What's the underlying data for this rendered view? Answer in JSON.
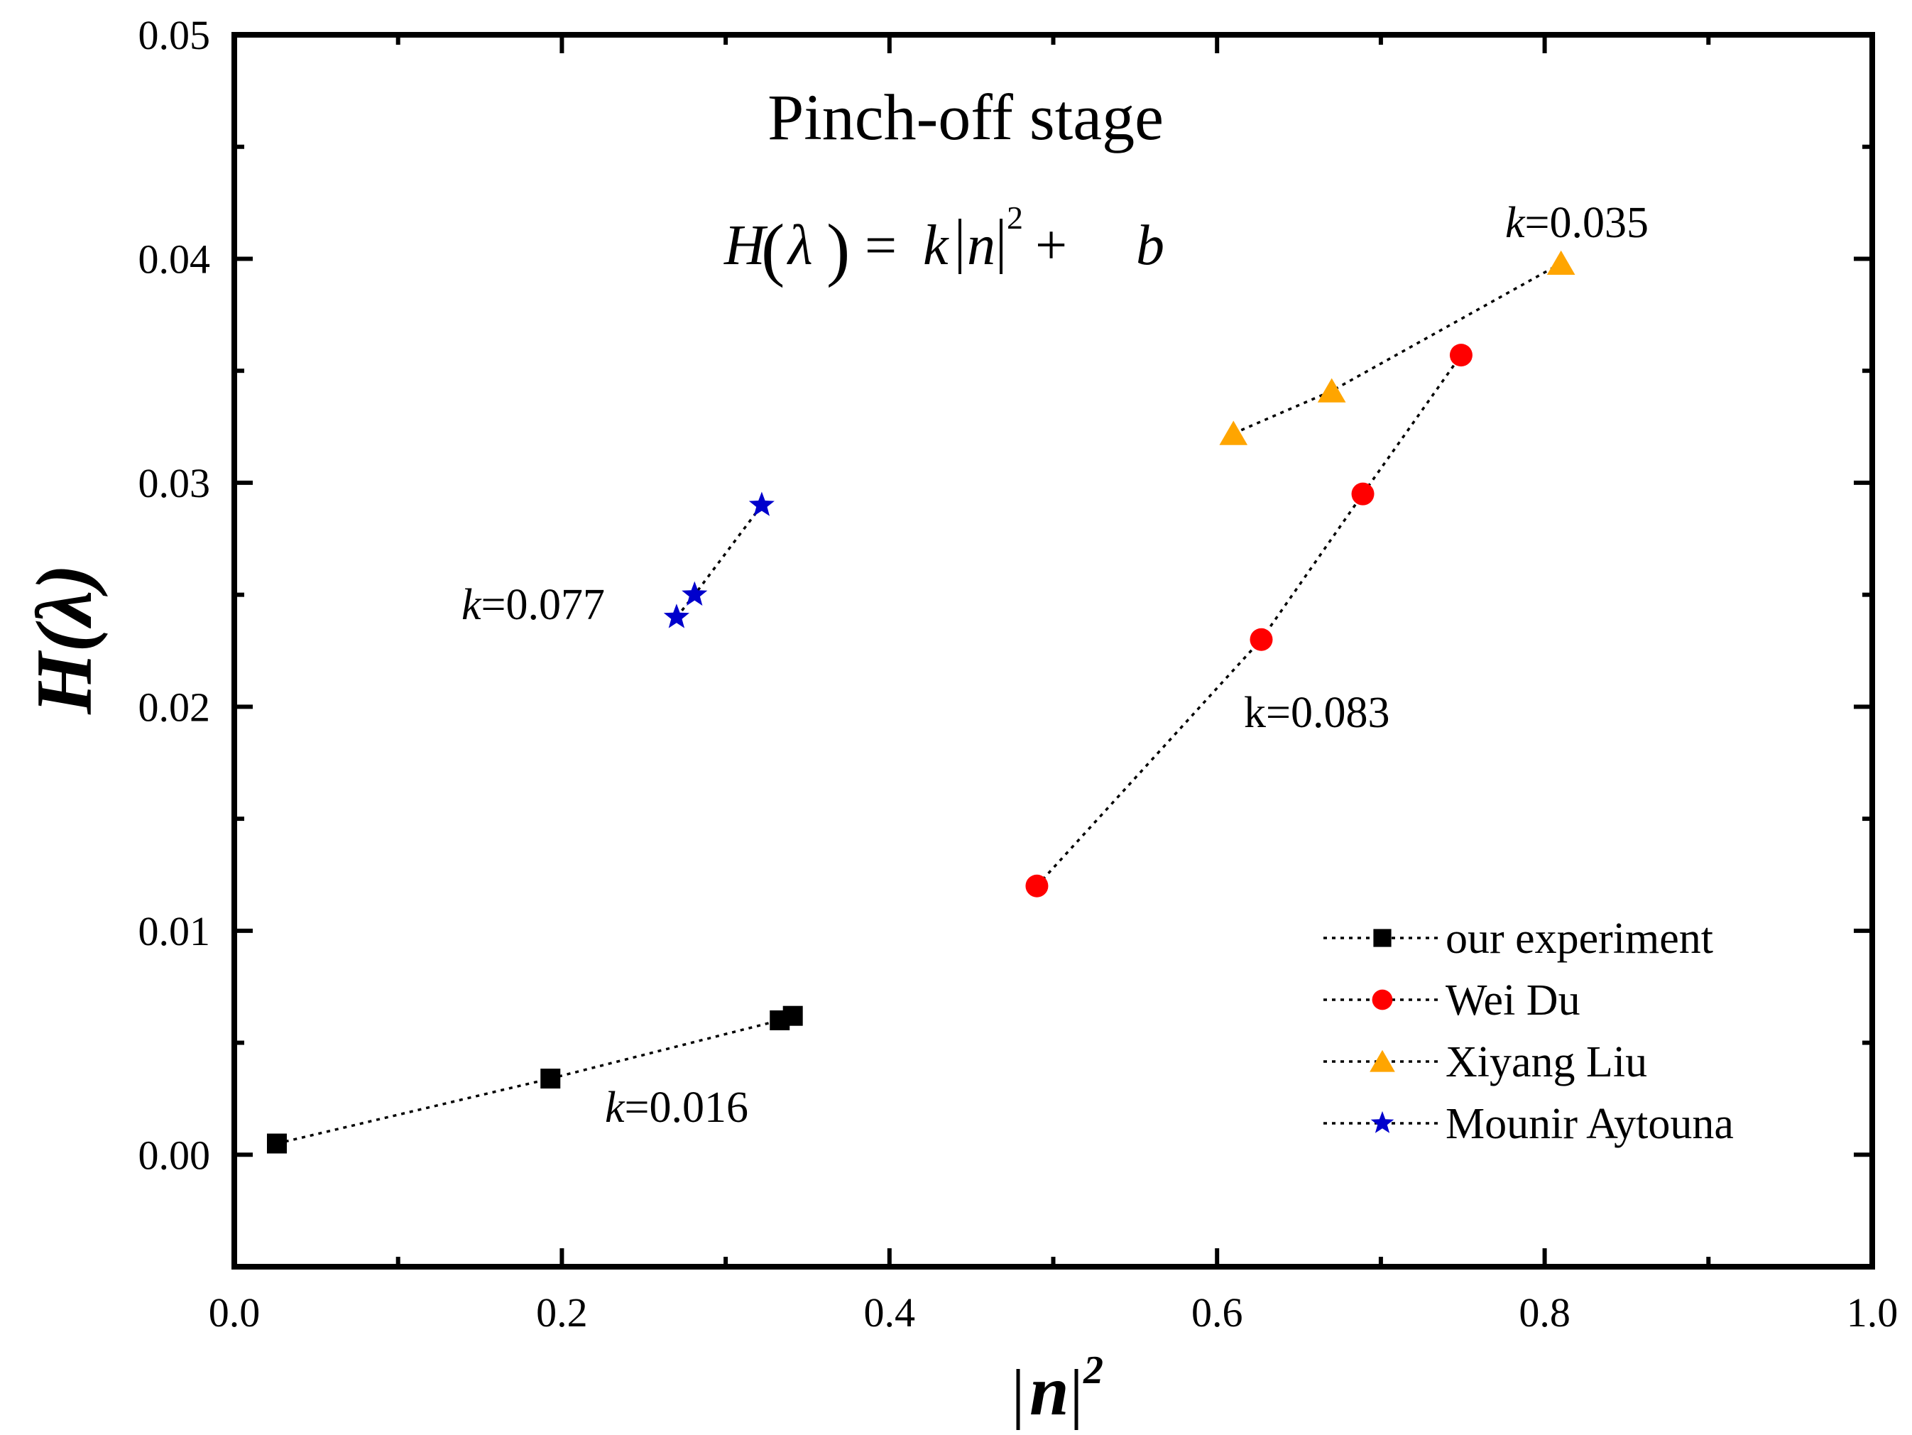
{
  "chart_data": {
    "type": "scatter",
    "title": "Pinch-off  stage",
    "formula": {
      "lhs": "H",
      "lambda": "λ",
      "eq": "=",
      "k": "k",
      "n": "n",
      "exp": "2",
      "plus": "+",
      "b": "b"
    },
    "xlabel": {
      "n": "n",
      "exp": "2"
    },
    "ylabel": {
      "h": "H",
      "lambda": "λ"
    },
    "xlim": [
      0.0,
      1.0
    ],
    "ylim": [
      -0.005,
      0.05
    ],
    "xticks": [
      "0.0",
      "0.2",
      "0.4",
      "0.6",
      "0.8",
      "1.0"
    ],
    "xtick_values": [
      0.0,
      0.2,
      0.4,
      0.6,
      0.8,
      1.0
    ],
    "yticks": [
      "0.00",
      "0.01",
      "0.02",
      "0.03",
      "0.04",
      "0.05"
    ],
    "ytick_values": [
      0.0,
      0.01,
      0.02,
      0.03,
      0.04,
      0.05
    ],
    "series": [
      {
        "name": "our experiment",
        "marker": "square",
        "color": "#000000",
        "x": [
          0.026,
          0.193,
          0.333,
          0.341
        ],
        "y": [
          0.0005,
          0.0034,
          0.006,
          0.0062
        ],
        "k_label": {
          "k": "k",
          "rest": "=0.016",
          "italic_k": true
        }
      },
      {
        "name": "Wei Du",
        "marker": "circle",
        "color": "#ff0000",
        "x": [
          0.49,
          0.627,
          0.689,
          0.749
        ],
        "y": [
          0.012,
          0.023,
          0.0295,
          0.0357
        ],
        "k_label": {
          "k": "k",
          "rest": "=0.083",
          "italic_k": false
        }
      },
      {
        "name": "Xiyang Liu",
        "marker": "triangle",
        "color": "#ffa500",
        "x": [
          0.61,
          0.67,
          0.81
        ],
        "y": [
          0.0322,
          0.0341,
          0.0398
        ],
        "k_label": {
          "k": "k",
          "rest": "=0.035",
          "italic_k": true
        }
      },
      {
        "name": "Mounir Aytouna",
        "marker": "star",
        "color": "#0000cc",
        "x": [
          0.27,
          0.281,
          0.322
        ],
        "y": [
          0.024,
          0.025,
          0.029
        ],
        "k_label": {
          "k": "k",
          "rest": "=0.077",
          "italic_k": true
        }
      }
    ],
    "legend_position": "bottom-right"
  }
}
